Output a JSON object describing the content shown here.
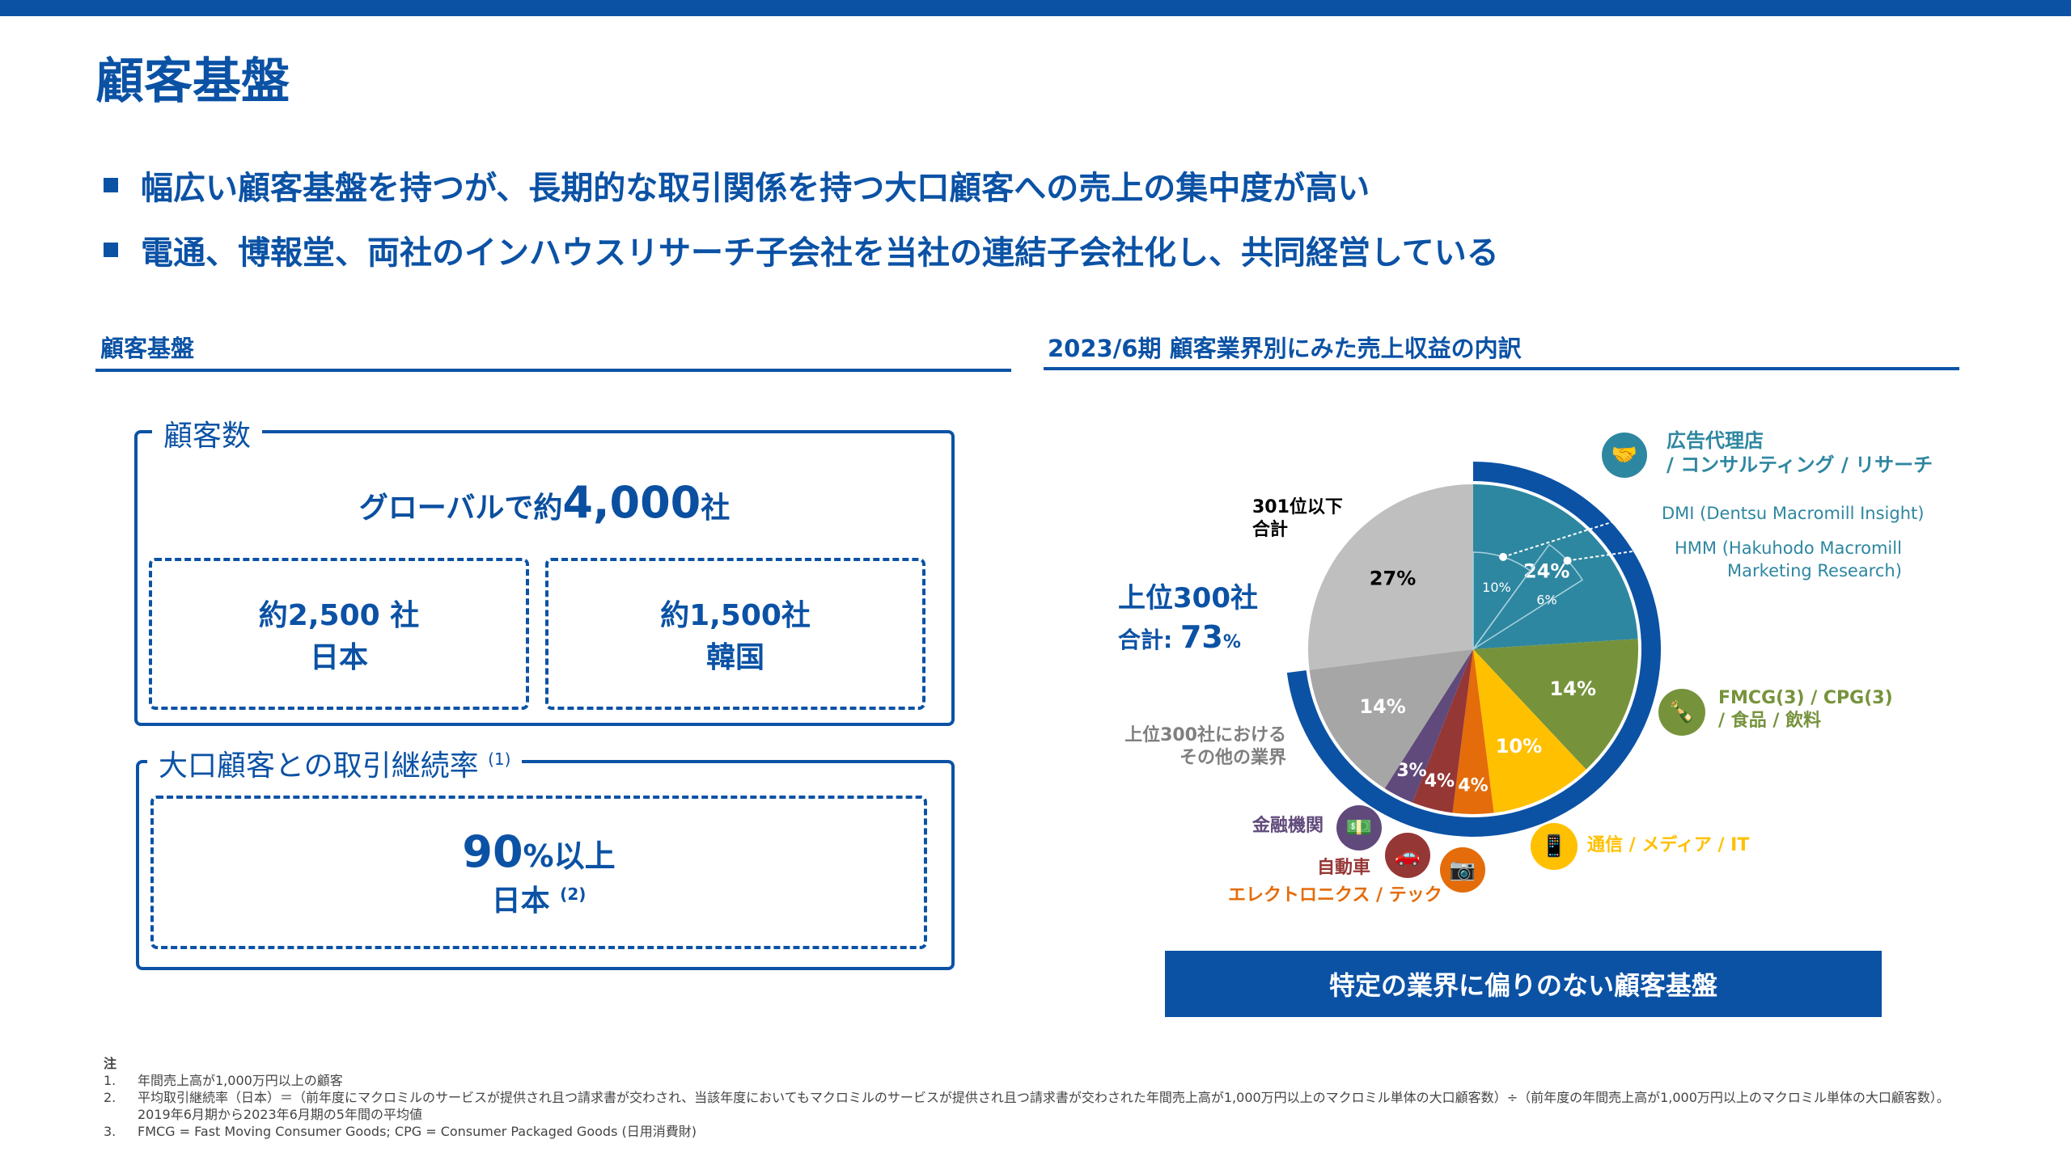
{
  "title": "顧客基盤",
  "bullets": [
    "幅広い顧客基盤を持つが、長期的な取引関係を持つ大口顧客への売上の集中度が高い",
    "電通、博報堂、両社のインハウスリサーチ子会社を当社の連結子会社化し、共同経営している"
  ],
  "left": {
    "heading": "顧客基盤",
    "customers": {
      "legend": "顧客数",
      "global_prefix": "グローバルで約",
      "global_value": "4,000",
      "global_suffix": "社",
      "japan_count": "約2,500 社",
      "japan_label": "日本",
      "korea_count": "約1,500社",
      "korea_label": "韓国"
    },
    "retention": {
      "legend": "大口顧客との取引継続率",
      "legend_note": "(1)",
      "value": "90",
      "unit": "%以上",
      "country": "日本",
      "country_note": "(2)"
    }
  },
  "right": {
    "heading": "2023/6期 顧客業界別にみた売上収益の内訳",
    "top300_line1": "上位300社",
    "top300_line2_prefix": "合計:",
    "top300_value": "73",
    "top300_unit": "%",
    "banner": "特定の業界に偏りのない顧客基盤"
  },
  "chart_data": {
    "type": "pie",
    "title": "2023/6期 顧客業界別にみた売上収益の内訳",
    "slices": [
      {
        "name": "広告代理店 / コンサルティング / リサーチ",
        "value": 24,
        "label": "24%",
        "color": "#2e87a0"
      },
      {
        "name": "FMCG / CPG / 食品 / 飲料",
        "value": 14,
        "label": "14%",
        "color": "#76933c"
      },
      {
        "name": "通信 / メディア / IT",
        "value": 10,
        "label": "10%",
        "color": "#ffc000"
      },
      {
        "name": "エレクトロニクス / テック",
        "value": 4,
        "label": "4%",
        "color": "#e46c0a"
      },
      {
        "name": "自動車",
        "value": 4,
        "label": "4%",
        "color": "#953735"
      },
      {
        "name": "金融機関",
        "value": 3,
        "label": "3%",
        "color": "#604a7b"
      },
      {
        "name": "上位300社におけるその他の業界",
        "value": 14,
        "label": "14%",
        "color": "#a6a6a6"
      },
      {
        "name": "301位以下合計",
        "value": 27,
        "label": "27%",
        "color": "#bfbfbf"
      }
    ],
    "sub_slices": [
      {
        "name": "DMI (Dentsu Macromill Insight)",
        "value": 10,
        "label": "10%"
      },
      {
        "name": "HMM (Hakuhodo Macromill Marketing Research)",
        "value": 6,
        "label": "6%"
      }
    ],
    "ring_total_percent": 73,
    "legend_labels": {
      "ad_line1": "広告代理店",
      "ad_line2": "/ コンサルティング / リサーチ",
      "dmi": "DMI (Dentsu Macromill Insight)",
      "hmm_line1": "HMM (Hakuhodo Macromill",
      "hmm_line2": "Marketing Research)",
      "fmcg_line1": "FMCG(3) / CPG(3)",
      "fmcg_line2": "/ 食品 / 飲料",
      "telecom": "通信 / メディア / IT",
      "electronics": "エレクトロニクス / テック",
      "auto": "自動車",
      "finance": "金融機関",
      "other_line1": "上位300社における",
      "other_line2": "その他の業界",
      "rest_line1": "301位以下",
      "rest_line2": "合計"
    }
  },
  "notes": {
    "heading": "注",
    "items": [
      {
        "n": "1.",
        "text": "年間売上高が1,000万円以上の顧客"
      },
      {
        "n": "2.",
        "text": "平均取引継続率（日本）＝（前年度にマクロミルのサービスが提供され且つ請求書が交わされ、当該年度においてもマクロミルのサービスが提供され且つ請求書が交わされた年間売上高が1,000万円以上のマクロミル単体の大口顧客数）÷（前年度の年間売上高が1,000万円以上のマクロミル単体の大口顧客数）。　2019年6月期から2023年6月期の5年間の平均値"
      },
      {
        "n": "3.",
        "text": "FMCG = Fast Moving Consumer Goods; CPG = Consumer Packaged Goods (日用消費財)"
      }
    ]
  }
}
